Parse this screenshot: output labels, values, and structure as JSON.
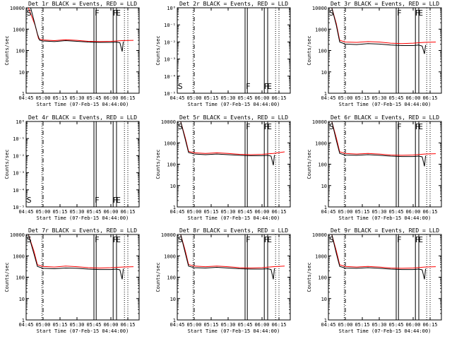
{
  "chart_data": [
    {
      "type": "line",
      "title": "Det 1r BLACK = Events, RED = LLD",
      "xlabel": "Start Time (07-Feb-15 04:44:00)",
      "ylabel": "Counts/sec",
      "x_ticks": [
        "04:45",
        "05:00",
        "05:15",
        "05:30",
        "05:45",
        "06:00",
        "06:15"
      ],
      "y_ticks": [
        "1",
        "10",
        "100",
        "1000",
        "10000"
      ],
      "ylim": [
        1,
        10000
      ],
      "yscale": "log",
      "markers": [
        "S",
        "F",
        "F",
        "E"
      ],
      "series": [
        {
          "name": "Events",
          "color": "#000000",
          "x": [
            "04:49",
            "04:55",
            "04:57",
            "05:00",
            "05:10",
            "05:20",
            "05:30",
            "05:40",
            "05:50",
            "06:00",
            "06:05",
            "06:08",
            "06:10",
            "06:11"
          ],
          "y": [
            10000,
            600,
            300,
            280,
            260,
            290,
            270,
            250,
            240,
            240,
            250,
            230,
            90,
            260
          ]
        },
        {
          "name": "LLD",
          "color": "#ff0000",
          "x": [
            "04:47",
            "04:53",
            "04:56",
            "05:00",
            "05:10",
            "05:20",
            "05:30",
            "05:40",
            "05:50",
            "06:00",
            "06:10",
            "06:20"
          ],
          "y": [
            10000,
            1500,
            350,
            310,
            290,
            320,
            300,
            270,
            260,
            270,
            290,
            300
          ]
        }
      ]
    },
    {
      "type": "line",
      "title": "Det 2r BLACK = Events, RED = LLD",
      "xlabel": "Start Time (07-Feb-15 04:44:00)",
      "ylabel": "Counts/sec",
      "x_ticks": [
        "04:45",
        "05:00",
        "05:15",
        "05:30",
        "05:45",
        "06:00",
        "06:15"
      ],
      "y_ticks": [
        "10⁻⁵",
        "10⁻⁴",
        "10⁻³",
        "10⁻²",
        "10⁻¹",
        "10⁰"
      ],
      "ylim": [
        1e-05,
        1
      ],
      "yscale": "log",
      "markers": [
        "S",
        "F",
        "F",
        "E"
      ],
      "series": []
    },
    {
      "type": "line",
      "title": "Det 3r BLACK = Events, RED = LLD",
      "xlabel": "Start Time (07-Feb-15 04:44:00)",
      "ylabel": "Counts/sec",
      "x_ticks": [
        "04:45",
        "05:00",
        "05:15",
        "05:30",
        "05:45",
        "06:00",
        "06:15"
      ],
      "y_ticks": [
        "1",
        "10",
        "100",
        "1000",
        "10000"
      ],
      "ylim": [
        1,
        10000
      ],
      "yscale": "log",
      "markers": [
        "S",
        "F",
        "F",
        "E"
      ],
      "series": [
        {
          "name": "Events",
          "color": "#000000",
          "x": [
            "04:48",
            "04:52",
            "04:55",
            "05:00",
            "05:10",
            "05:20",
            "05:30",
            "05:40",
            "05:50",
            "06:00",
            "06:05",
            "06:08",
            "06:10",
            "06:11"
          ],
          "y": [
            10000,
            1500,
            250,
            200,
            190,
            210,
            200,
            180,
            170,
            170,
            180,
            160,
            70,
            180
          ]
        },
        {
          "name": "LLD",
          "color": "#ff0000",
          "x": [
            "04:48",
            "04:52",
            "04:55",
            "05:00",
            "05:10",
            "05:20",
            "05:30",
            "05:40",
            "05:50",
            "06:00",
            "06:10",
            "06:20"
          ],
          "y": [
            10000,
            1800,
            300,
            250,
            240,
            260,
            250,
            220,
            210,
            220,
            240,
            250
          ]
        }
      ]
    },
    {
      "type": "line",
      "title": "Det 4r BLACK = Events, RED = LLD",
      "xlabel": "Start Time (07-Feb-15 04:44:00)",
      "ylabel": "Counts/sec",
      "x_ticks": [
        "04:45",
        "05:00",
        "05:15",
        "05:30",
        "05:45",
        "06:00",
        "06:15"
      ],
      "y_ticks": [
        "10⁻⁵",
        "10⁻⁴",
        "10⁻³",
        "10⁻²",
        "10⁻¹",
        "10⁰"
      ],
      "ylim": [
        1e-05,
        1
      ],
      "yscale": "log",
      "markers": [
        "S",
        "F",
        "F",
        "E"
      ],
      "series": []
    },
    {
      "type": "line",
      "title": "Det 5r BLACK = Events, RED = LLD",
      "xlabel": "Start Time (07-Feb-15 04:44:00)",
      "ylabel": "Counts/sec",
      "x_ticks": [
        "04:45",
        "05:00",
        "05:15",
        "05:30",
        "05:45",
        "06:00",
        "06:15"
      ],
      "y_ticks": [
        "1",
        "10",
        "100",
        "1000",
        "10000"
      ],
      "ylim": [
        1,
        10000
      ],
      "yscale": "log",
      "markers": [
        "S",
        "F",
        "F",
        "E"
      ],
      "series": [
        {
          "name": "Events",
          "color": "#000000",
          "x": [
            "04:48",
            "04:52",
            "04:55",
            "05:00",
            "05:10",
            "05:20",
            "05:30",
            "05:40",
            "05:50",
            "06:00",
            "06:05",
            "06:08",
            "06:10",
            "06:11"
          ],
          "y": [
            10000,
            1500,
            350,
            300,
            280,
            300,
            280,
            260,
            250,
            250,
            260,
            240,
            90,
            270
          ]
        },
        {
          "name": "LLD",
          "color": "#ff0000",
          "x": [
            "04:48",
            "04:52",
            "04:55",
            "05:00",
            "05:10",
            "05:20",
            "05:30",
            "05:40",
            "05:50",
            "06:00",
            "06:10",
            "06:20"
          ],
          "y": [
            10000,
            1800,
            400,
            340,
            320,
            340,
            320,
            290,
            280,
            290,
            320,
            380
          ]
        }
      ]
    },
    {
      "type": "line",
      "title": "Det 6r BLACK = Events, RED = LLD",
      "xlabel": "Start Time (07-Feb-15 04:44:00)",
      "ylabel": "Counts/sec",
      "x_ticks": [
        "04:45",
        "05:00",
        "05:15",
        "05:30",
        "05:45",
        "06:00",
        "06:15"
      ],
      "y_ticks": [
        "1",
        "10",
        "100",
        "1000",
        "10000"
      ],
      "ylim": [
        1,
        10000
      ],
      "yscale": "log",
      "markers": [
        "S",
        "F",
        "F",
        "E"
      ],
      "series": [
        {
          "name": "Events",
          "color": "#000000",
          "x": [
            "04:48",
            "04:52",
            "04:55",
            "05:00",
            "05:10",
            "05:20",
            "05:30",
            "05:40",
            "05:50",
            "06:00",
            "06:05",
            "06:08",
            "06:10",
            "06:11"
          ],
          "y": [
            10000,
            1300,
            320,
            270,
            260,
            280,
            260,
            240,
            230,
            230,
            240,
            220,
            80,
            250
          ]
        },
        {
          "name": "LLD",
          "color": "#ff0000",
          "x": [
            "04:48",
            "04:52",
            "04:55",
            "05:00",
            "05:10",
            "05:20",
            "05:30",
            "05:40",
            "05:50",
            "06:00",
            "06:10",
            "06:20"
          ],
          "y": [
            10000,
            1700,
            380,
            320,
            300,
            320,
            300,
            270,
            260,
            270,
            300,
            310
          ]
        }
      ]
    },
    {
      "type": "line",
      "title": "Det 7r BLACK = Events, RED = LLD",
      "xlabel": "Start Time (07-Feb-15 04:44:00)",
      "ylabel": "Counts/sec",
      "x_ticks": [
        "04:45",
        "05:00",
        "05:15",
        "05:30",
        "05:45",
        "06:00",
        "06:15"
      ],
      "y_ticks": [
        "1",
        "10",
        "100",
        "1000",
        "10000"
      ],
      "ylim": [
        1,
        10000
      ],
      "yscale": "log",
      "markers": [
        "S",
        "F",
        "F",
        "E"
      ],
      "series": [
        {
          "name": "Events",
          "color": "#000000",
          "x": [
            "04:47",
            "04:52",
            "04:55",
            "05:00",
            "05:10",
            "05:20",
            "05:30",
            "05:40",
            "05:50",
            "06:00",
            "06:05",
            "06:08",
            "06:10",
            "06:11"
          ],
          "y": [
            10000,
            1200,
            320,
            260,
            250,
            270,
            260,
            240,
            230,
            230,
            240,
            220,
            80,
            250
          ]
        },
        {
          "name": "LLD",
          "color": "#ff0000",
          "x": [
            "04:47",
            "04:52",
            "04:55",
            "05:00",
            "05:10",
            "05:20",
            "05:30",
            "05:40",
            "05:50",
            "06:00",
            "06:10",
            "06:20"
          ],
          "y": [
            10000,
            1600,
            380,
            320,
            300,
            330,
            310,
            280,
            270,
            280,
            300,
            310
          ]
        }
      ]
    },
    {
      "type": "line",
      "title": "Det 8r BLACK = Events, RED = LLD",
      "xlabel": "Start Time (07-Feb-15 04:44:00)",
      "ylabel": "Counts/sec",
      "x_ticks": [
        "04:45",
        "05:00",
        "05:15",
        "05:30",
        "05:45",
        "06:00",
        "06:15"
      ],
      "y_ticks": [
        "1",
        "10",
        "100",
        "1000",
        "10000"
      ],
      "ylim": [
        1,
        10000
      ],
      "yscale": "log",
      "markers": [
        "S",
        "F",
        "F",
        "E"
      ],
      "series": [
        {
          "name": "Events",
          "color": "#000000",
          "x": [
            "04:48",
            "04:52",
            "04:55",
            "05:00",
            "05:10",
            "05:20",
            "05:30",
            "05:40",
            "05:50",
            "06:00",
            "06:05",
            "06:08",
            "06:10",
            "06:11"
          ],
          "y": [
            10000,
            1400,
            330,
            280,
            270,
            290,
            270,
            250,
            240,
            240,
            250,
            230,
            80,
            260
          ]
        },
        {
          "name": "LLD",
          "color": "#ff0000",
          "x": [
            "04:48",
            "04:52",
            "04:55",
            "05:00",
            "05:10",
            "05:20",
            "05:30",
            "05:40",
            "05:50",
            "06:00",
            "06:10",
            "06:20"
          ],
          "y": [
            10000,
            1800,
            390,
            330,
            310,
            330,
            310,
            280,
            270,
            280,
            310,
            330
          ]
        }
      ]
    },
    {
      "type": "line",
      "title": "Det 9r BLACK = Events, RED = LLD",
      "xlabel": "Start Time (07-Feb-15 04:44:00)",
      "ylabel": "Counts/sec",
      "x_ticks": [
        "04:45",
        "05:00",
        "05:15",
        "05:30",
        "05:45",
        "06:00",
        "06:15"
      ],
      "y_ticks": [
        "1",
        "10",
        "100",
        "1000",
        "10000"
      ],
      "ylim": [
        1,
        10000
      ],
      "yscale": "log",
      "markers": [
        "S",
        "F",
        "F",
        "E"
      ],
      "series": [
        {
          "name": "Events",
          "color": "#000000",
          "x": [
            "04:48",
            "04:52",
            "04:55",
            "05:00",
            "05:10",
            "05:20",
            "05:30",
            "05:40",
            "05:50",
            "06:00",
            "06:05",
            "06:08",
            "06:10",
            "06:11"
          ],
          "y": [
            10000,
            1300,
            320,
            270,
            260,
            280,
            260,
            240,
            230,
            230,
            240,
            220,
            80,
            250
          ]
        },
        {
          "name": "LLD",
          "color": "#ff0000",
          "x": [
            "04:48",
            "04:52",
            "04:55",
            "05:00",
            "05:10",
            "05:20",
            "05:30",
            "05:40",
            "05:50",
            "06:00",
            "06:10",
            "06:20"
          ],
          "y": [
            10000,
            1700,
            380,
            320,
            300,
            320,
            300,
            270,
            260,
            270,
            300,
            310
          ]
        }
      ]
    }
  ],
  "vertical_lines": {
    "dotted": [
      "04:59",
      "06:12",
      "06:15"
    ],
    "dashed": [
      "05:00"
    ],
    "solid": [
      "05:45",
      "05:47",
      "06:02",
      "06:05"
    ]
  }
}
